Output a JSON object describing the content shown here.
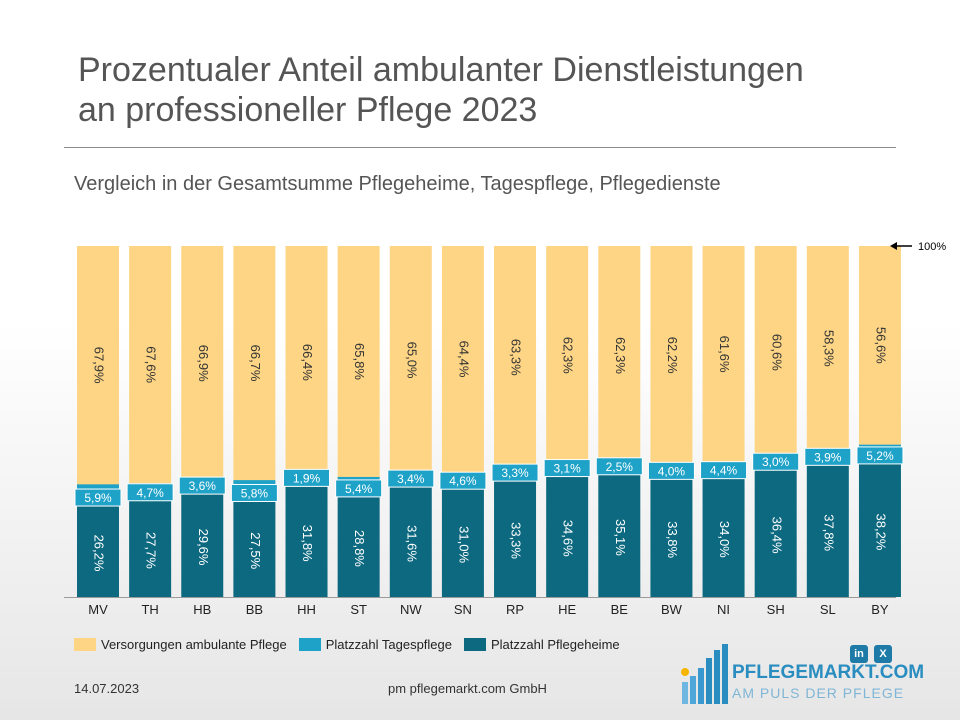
{
  "header": {
    "title_line1": "Prozentualer Anteil ambulanter Dienstleistungen",
    "title_line2": "an professioneller Pflege 2023",
    "subtitle": "Vergleich in der Gesamtsumme Pflegeheime, Tagespflege, Pflegedienste"
  },
  "chart_data": {
    "type": "bar",
    "stacked": true,
    "categories": [
      "MV",
      "TH",
      "HB",
      "BB",
      "HH",
      "ST",
      "NW",
      "SN",
      "RP",
      "HE",
      "BE",
      "BW",
      "NI",
      "SH",
      "SL",
      "BY"
    ],
    "series": [
      {
        "name": "Platzzahl Pflegeheime",
        "color": "#0d6980",
        "values": [
          26.2,
          27.7,
          29.6,
          27.5,
          31.8,
          28.8,
          31.6,
          31.0,
          33.3,
          34.6,
          35.1,
          33.8,
          34.0,
          36.4,
          37.8,
          38.2
        ],
        "labels": [
          "26,2%",
          "27,7%",
          "29,6%",
          "27,5%",
          "31,8%",
          "28,8%",
          "31,6%",
          "31,0%",
          "33,3%",
          "34,6%",
          "35,1%",
          "33,8%",
          "34,0%",
          "36,4%",
          "37,8%",
          "38,2%"
        ]
      },
      {
        "name": "Platzzahl Tagespflege",
        "color": "#1fa2c8",
        "values": [
          5.9,
          4.7,
          3.6,
          5.8,
          1.9,
          5.4,
          3.4,
          4.6,
          3.3,
          3.1,
          2.5,
          4.0,
          4.4,
          3.0,
          3.9,
          5.2
        ],
        "labels": [
          "5,9%",
          "4,7%",
          "3,6%",
          "5,8%",
          "1,9%",
          "5,4%",
          "3,4%",
          "4,6%",
          "3,3%",
          "3,1%",
          "2,5%",
          "4,0%",
          "4,4%",
          "3,0%",
          "3,9%",
          "5,2%"
        ]
      },
      {
        "name": "Versorgungen ambulante Pflege",
        "color": "#fdd585",
        "values": [
          67.9,
          67.6,
          66.9,
          66.7,
          66.4,
          65.8,
          65.0,
          64.4,
          63.3,
          62.3,
          62.3,
          62.2,
          61.6,
          60.6,
          58.3,
          56.6
        ],
        "labels": [
          "67,9%",
          "67,6%",
          "66,9%",
          "66,7%",
          "66,4%",
          "65,8%",
          "65,0%",
          "64,4%",
          "63,3%",
          "62,3%",
          "62,3%",
          "62,2%",
          "61,6%",
          "60,6%",
          "58,3%",
          "56,6%"
        ]
      }
    ],
    "ylim": [
      0,
      100
    ],
    "reference_marker": "100%",
    "legend_position": "bottom-left",
    "grid": false
  },
  "legend": [
    {
      "label": "Versorgungen ambulante Pflege",
      "color": "#fdd585"
    },
    {
      "label": "Platzzahl Tagespflege",
      "color": "#1fa2c8"
    },
    {
      "label": "Platzzahl Pflegeheime",
      "color": "#0d6980"
    }
  ],
  "footer": {
    "date": "14.07.2023",
    "company": "pm pflegemarkt.com GmbH"
  },
  "social": {
    "linkedin": "in",
    "xing": "X"
  },
  "logo": {
    "name": "PFLEGEMARKT.COM",
    "tagline": "AM PULS DER PFLEGE",
    "icon": "pflegemarkt-logo-icon"
  }
}
